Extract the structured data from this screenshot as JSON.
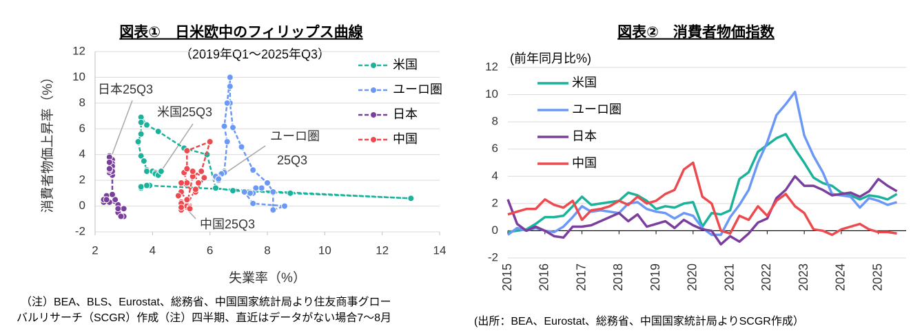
{
  "chart_data": [
    {
      "type": "scatter",
      "title": "図表①　日米欧中のフィリップス曲線",
      "subtitle": "（2019年Q1～2025年Q3）",
      "x_label": "失業率（%）",
      "y_label": "消費者物価上昇率（%）",
      "xlim": [
        2,
        14
      ],
      "xticks": [
        2,
        4,
        6,
        8,
        10,
        12,
        14
      ],
      "ylim": [
        -2,
        12
      ],
      "yticks": [
        -2,
        0,
        2,
        4,
        6,
        8,
        10,
        12
      ],
      "grid": true,
      "legend": "top-right",
      "annotations": [
        "日本25Q3",
        "米国25Q3",
        "ユーロ圏",
        "25Q3",
        "中国25Q3"
      ],
      "series": [
        {
          "name": "米国",
          "color": "#1bb29b",
          "x": [
            3.9,
            3.6,
            3.6,
            3.6,
            3.8,
            13.0,
            8.8,
            6.8,
            6.2,
            5.9,
            5.1,
            4.2,
            3.8,
            3.6,
            3.6,
            3.6,
            3.5,
            3.6,
            3.7,
            3.8,
            3.8,
            4.0,
            4.2,
            4.1,
            4.1,
            4.2,
            4.3
          ],
          "values": [
            1.6,
            1.5,
            1.4,
            1.5,
            1.6,
            0.6,
            1.0,
            1.2,
            1.4,
            4.0,
            4.5,
            5.8,
            6.3,
            6.9,
            6.5,
            5.6,
            5.0,
            3.9,
            3.5,
            2.8,
            2.7,
            2.7,
            2.5,
            2.6,
            2.5,
            2.4,
            2.7
          ]
        },
        {
          "name": "ユーロ圏",
          "color": "#6b98f5",
          "x": [
            7.8,
            7.6,
            7.5,
            7.4,
            7.2,
            7.5,
            8.6,
            8.2,
            8.2,
            8.0,
            7.5,
            7.1,
            6.8,
            6.7,
            6.7,
            6.7,
            6.6,
            6.5,
            6.6,
            6.5,
            6.5,
            6.4,
            6.3,
            6.2,
            6.2,
            6.3,
            6.3
          ],
          "values": [
            1.4,
            1.4,
            1.0,
            1.0,
            1.1,
            0.2,
            0.0,
            -0.3,
            1.1,
            1.8,
            2.8,
            4.6,
            6.1,
            8.0,
            9.3,
            10.0,
            8.0,
            6.2,
            5.0,
            2.7,
            2.6,
            2.5,
            2.2,
            2.2,
            2.3,
            2.0,
            2.1
          ]
        },
        {
          "name": "日本",
          "color": "#7a3e9d",
          "x": [
            2.5,
            2.4,
            2.3,
            2.3,
            2.4,
            2.8,
            3.0,
            3.0,
            2.8,
            2.9,
            2.8,
            2.7,
            2.6,
            2.6,
            2.6,
            2.5,
            2.6,
            2.6,
            2.6,
            2.5,
            2.5,
            2.6,
            2.5,
            2.5,
            2.5,
            2.5,
            2.5
          ],
          "values": [
            0.3,
            0.8,
            0.3,
            0.5,
            0.5,
            0.1,
            -0.2,
            -0.8,
            -0.5,
            -0.8,
            -0.2,
            0.5,
            0.9,
            2.4,
            2.9,
            3.9,
            3.6,
            3.3,
            3.1,
            2.9,
            2.6,
            2.7,
            2.8,
            2.9,
            3.8,
            3.4,
            2.9
          ]
        },
        {
          "name": "中国",
          "color": "#ec4a4f",
          "x": [
            5.2,
            5.1,
            5.2,
            5.2,
            6.0,
            5.7,
            5.4,
            5.2,
            5.3,
            5.0,
            4.9,
            5.0,
            5.5,
            5.8,
            5.4,
            5.6,
            5.5,
            5.2,
            5.2,
            5.0,
            5.2,
            5.0,
            5.2,
            5.0,
            5.3,
            5.0,
            5.3
          ],
          "values": [
            1.8,
            2.6,
            2.9,
            4.3,
            5.0,
            2.7,
            2.3,
            0.1,
            0.0,
            1.1,
            0.8,
            1.8,
            1.1,
            2.2,
            2.7,
            1.8,
            1.3,
            0.1,
            -0.1,
            -0.3,
            0.0,
            0.3,
            0.5,
            0.2,
            -0.1,
            -0.1,
            -0.2
          ]
        }
      ],
      "note": [
        "（注）BEA、BLS、Eurostat、総務省、中国国家統計局より住友商事グロー",
        "バルリサーチ（SCGR）作成（注）四半期、直近はデータがない場合7～8月"
      ]
    },
    {
      "type": "line",
      "title": "図表②　消費者物価指数",
      "subtitle": "(前年同月比%)",
      "xlim": [
        2015,
        2025.75
      ],
      "xticks": [
        2015,
        2016,
        2017,
        2018,
        2019,
        2020,
        2021,
        2022,
        2023,
        2024,
        2025
      ],
      "ylim": [
        -2,
        12
      ],
      "yticks": [
        -2,
        0,
        2,
        4,
        6,
        8,
        10,
        12
      ],
      "grid": true,
      "legend": "top-left",
      "x": [
        2015,
        2015.25,
        2015.5,
        2015.75,
        2016,
        2016.25,
        2016.5,
        2016.75,
        2017,
        2017.25,
        2017.5,
        2017.75,
        2018,
        2018.25,
        2018.5,
        2018.75,
        2019,
        2019.25,
        2019.5,
        2019.75,
        2020,
        2020.25,
        2020.5,
        2020.75,
        2021,
        2021.25,
        2021.5,
        2021.75,
        2022,
        2022.25,
        2022.5,
        2022.75,
        2023,
        2023.25,
        2023.5,
        2023.75,
        2024,
        2024.25,
        2024.5,
        2024.75,
        2025,
        2025.25,
        2025.5
      ],
      "series": [
        {
          "name": "米国",
          "color": "#1bb29b",
          "values": [
            -0.1,
            0.0,
            0.1,
            0.5,
            1.0,
            1.0,
            1.1,
            1.8,
            2.5,
            1.9,
            2.0,
            2.1,
            2.2,
            2.8,
            2.6,
            2.2,
            1.6,
            1.8,
            1.7,
            2.0,
            2.1,
            0.3,
            1.3,
            1.2,
            1.5,
            3.8,
            4.3,
            5.8,
            6.3,
            6.8,
            7.1,
            6.0,
            5.0,
            3.9,
            3.5,
            3.3,
            2.8,
            2.6,
            2.3,
            2.6,
            2.5,
            2.3,
            2.7
          ]
        },
        {
          "name": "ユーロ圏",
          "color": "#6b98f5",
          "values": [
            -0.3,
            0.2,
            0.0,
            0.2,
            0.0,
            -0.1,
            0.3,
            1.0,
            1.8,
            1.4,
            1.5,
            1.4,
            1.3,
            2.0,
            2.1,
            1.6,
            1.4,
            1.3,
            0.9,
            1.3,
            1.1,
            0.2,
            -0.3,
            -0.3,
            1.0,
            1.9,
            3.0,
            5.0,
            6.5,
            8.5,
            9.3,
            10.2,
            7.0,
            5.5,
            4.3,
            2.7,
            2.6,
            2.5,
            1.7,
            2.4,
            2.2,
            1.9,
            2.1
          ]
        },
        {
          "name": "日本",
          "color": "#7a3e9d",
          "values": [
            2.3,
            0.5,
            0.0,
            0.3,
            0.0,
            -0.4,
            -0.5,
            0.3,
            0.3,
            0.4,
            0.7,
            1.0,
            1.3,
            0.7,
            1.2,
            0.3,
            0.5,
            0.7,
            0.2,
            0.8,
            0.4,
            0.1,
            0.0,
            -1.0,
            -0.4,
            -0.8,
            -0.2,
            0.6,
            0.9,
            2.4,
            3.0,
            4.0,
            3.3,
            3.3,
            3.0,
            2.6,
            2.7,
            2.8,
            2.5,
            2.9,
            3.8,
            3.3,
            2.9
          ]
        },
        {
          "name": "中国",
          "color": "#ec4a4f",
          "values": [
            1.2,
            1.4,
            1.6,
            1.6,
            2.3,
            1.9,
            1.7,
            2.2,
            0.8,
            1.5,
            1.6,
            1.8,
            2.2,
            1.9,
            2.5,
            2.0,
            2.2,
            2.7,
            3.0,
            4.5,
            5.0,
            2.5,
            2.0,
            0.0,
            -0.2,
            1.1,
            0.8,
            1.8,
            1.1,
            2.2,
            2.7,
            1.8,
            1.3,
            0.1,
            0.0,
            -0.3,
            0.1,
            0.3,
            0.5,
            0.1,
            -0.1,
            -0.1,
            -0.2
          ]
        }
      ],
      "note": [
        "(出所：BEA、Eurostat、総務省、中国国家統計局よりSCGR作成）"
      ]
    }
  ]
}
